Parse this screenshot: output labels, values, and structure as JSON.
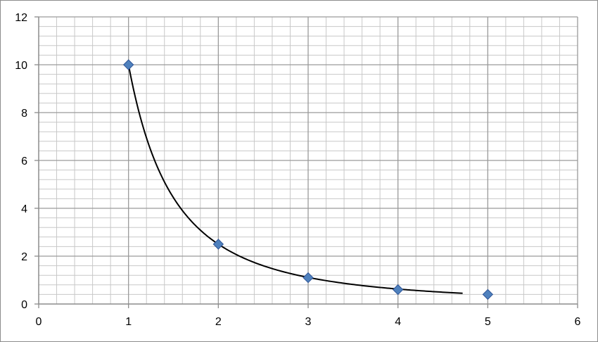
{
  "chart_data": {
    "type": "scatter",
    "title": "",
    "xlabel": "",
    "ylabel": "",
    "xlim": [
      0,
      6
    ],
    "ylim": [
      0,
      12
    ],
    "x_ticks": [
      "0",
      "1",
      "2",
      "3",
      "4",
      "5",
      "6"
    ],
    "y_ticks": [
      "0",
      "2",
      "4",
      "6",
      "8",
      "10",
      "12"
    ],
    "grid": "on",
    "legend": "none",
    "series": [
      {
        "x": [
          1,
          2,
          3,
          4,
          5
        ],
        "y": [
          10,
          2.5,
          1.1,
          0.6,
          0.4
        ],
        "marker": "diamond",
        "color": "#4f81bd"
      }
    ],
    "trendline": {
      "type": "power",
      "a": 10,
      "b": -2,
      "x_range": [
        1,
        4.72
      ],
      "color": "#000000"
    },
    "colors": {
      "major_grid": "#9a9a9a",
      "minor_grid": "#c8c8c8",
      "marker_edge": "#2f5597"
    }
  }
}
